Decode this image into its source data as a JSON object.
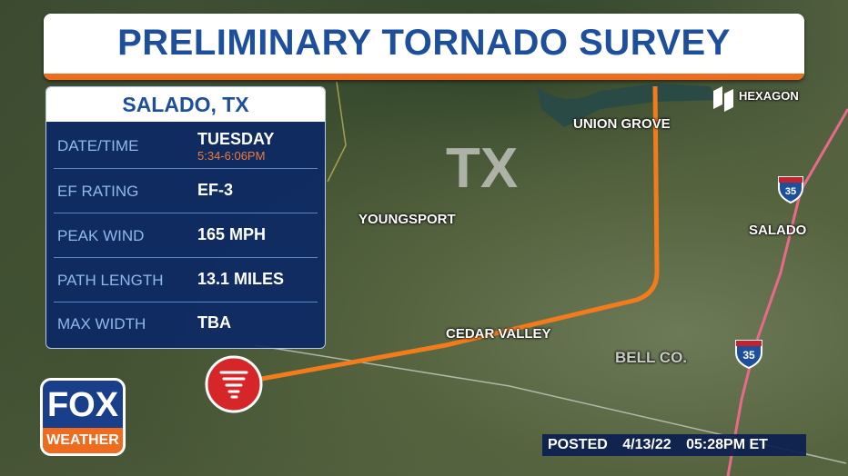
{
  "header": {
    "title": "PRELIMINARY TORNADO SURVEY"
  },
  "panel": {
    "location": "SALADO, TX",
    "rows": [
      {
        "label": "DATE/TIME",
        "value": "TUESDAY",
        "detail": "5:34-6:06PM"
      },
      {
        "label": "EF RATING",
        "value": "EF-3"
      },
      {
        "label": "PEAK WIND",
        "value": "165 MPH"
      },
      {
        "label": "PATH LENGTH",
        "value": "13.1 MILES"
      },
      {
        "label": "MAX WIDTH",
        "value": "TBA"
      }
    ]
  },
  "map": {
    "state": "TX",
    "credit": "HEXAGON",
    "county": "BELL CO.",
    "highway": "35",
    "places": [
      "UNION GROVE",
      "YOUNGSPORT",
      "SALADO",
      "CEDAR VALLEY"
    ]
  },
  "logo": {
    "top": "FOX",
    "bottom": "WEATHER"
  },
  "posted": {
    "label": "POSTED",
    "date": "4/13/22",
    "time": "05:28PM ET"
  }
}
